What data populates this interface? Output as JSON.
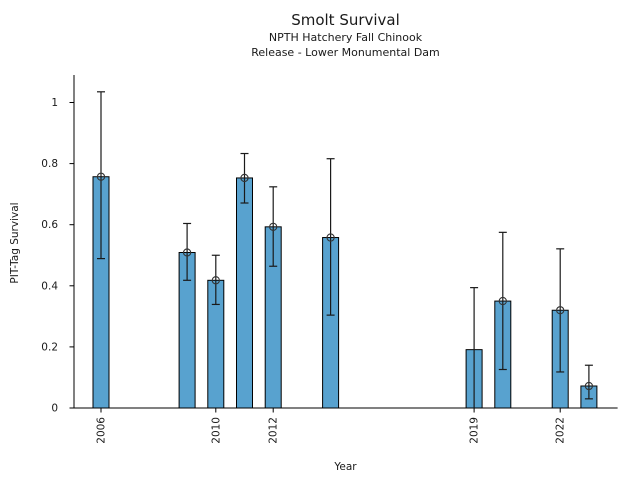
{
  "chart_data": {
    "type": "bar",
    "title": "Smolt Survival",
    "subtitle": [
      "NPTH Hatchery Fall Chinook",
      "Release - Lower Monumental Dam"
    ],
    "xlabel": "Year",
    "ylabel": "PIT-Tag Survival",
    "xlim": [
      2005,
      2024
    ],
    "ylim": [
      0,
      1.09
    ],
    "x_ticks": [
      "2006",
      "2010",
      "2012",
      "2019",
      "2022"
    ],
    "x_tick_years": [
      2006,
      2010,
      2012,
      2019,
      2022
    ],
    "y_ticks": [
      "0",
      "0.2",
      "0.4",
      "0.6",
      "0.8",
      "1"
    ],
    "y_tick_values": [
      0,
      0.2,
      0.4,
      0.6,
      0.8,
      1
    ],
    "grid": false,
    "legend": "none",
    "bar_color": "#58A2CF",
    "bar_edge_color": "#000000",
    "error_color": "#1a1a1a",
    "marker_color": "#333333",
    "bars": [
      {
        "year": 2006,
        "value": 0.757,
        "ci_low": 0.489,
        "ci_high": 1.035,
        "marker": true
      },
      {
        "year": 2009,
        "value": 0.509,
        "ci_low": 0.418,
        "ci_high": 0.604,
        "marker": true
      },
      {
        "year": 2010,
        "value": 0.418,
        "ci_low": 0.339,
        "ci_high": 0.5,
        "marker": true
      },
      {
        "year": 2011,
        "value": 0.753,
        "ci_low": 0.671,
        "ci_high": 0.833,
        "marker": true
      },
      {
        "year": 2012,
        "value": 0.593,
        "ci_low": 0.464,
        "ci_high": 0.724,
        "marker": true
      },
      {
        "year": 2014,
        "value": 0.558,
        "ci_low": 0.304,
        "ci_high": 0.816,
        "marker": true
      },
      {
        "year": 2019,
        "value": 0.191,
        "ci_low": 0.0,
        "ci_high": 0.394,
        "marker": false
      },
      {
        "year": 2020,
        "value": 0.35,
        "ci_low": 0.126,
        "ci_high": 0.575,
        "marker": true
      },
      {
        "year": 2022,
        "value": 0.32,
        "ci_low": 0.118,
        "ci_high": 0.521,
        "marker": true
      },
      {
        "year": 2023,
        "value": 0.072,
        "ci_low": 0.03,
        "ci_high": 0.14,
        "marker": true
      }
    ]
  }
}
